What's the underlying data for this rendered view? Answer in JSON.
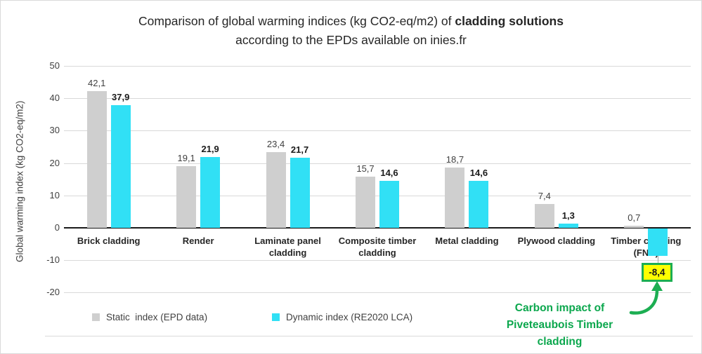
{
  "title_parts": {
    "line1_regular": "Comparison of global warming indices (kg CO2-eq/m2) of ",
    "line1_bold": "cladding solutions",
    "line2": "according to the EPDs available on inies.fr"
  },
  "chart_data": {
    "type": "bar",
    "title": "Comparison of global warming indices (kg CO2-eq/m2) of cladding solutions according to the EPDs available on inies.fr",
    "ylabel": "Global warming index (kg CO2-eq/m2)",
    "xlabel": "",
    "ylim": [
      -20,
      50
    ],
    "yticks": [
      50,
      40,
      30,
      20,
      10,
      0,
      -10,
      -20
    ],
    "grid": true,
    "legend_position": "bottom",
    "decimal_separator": ",",
    "categories": [
      "Brick cladding",
      "Render",
      "Laminate panel cladding",
      "Composite timber cladding",
      "Metal cladding",
      "Plywood cladding",
      "Timber cladding (FNB)"
    ],
    "series": [
      {
        "name": "Static  index (EPD data)",
        "color": "#cfcfcf",
        "values": [
          42.1,
          19.1,
          23.4,
          15.7,
          18.7,
          7.4,
          0.7
        ],
        "labels": [
          "42,1",
          "19,1",
          "23,4",
          "15,7",
          "18,7",
          "7,4",
          "0,7"
        ]
      },
      {
        "name": "Dynamic index (RE2020 LCA)",
        "color": "#31e0f5",
        "values": [
          37.9,
          21.9,
          21.7,
          14.6,
          14.6,
          1.3,
          -8.4
        ],
        "labels": [
          "37,9",
          "21,9",
          "21,7",
          "14,6",
          "14,6",
          "1,3",
          "-8,4"
        ]
      }
    ],
    "highlight_label": {
      "series_index": 1,
      "category_index": 6,
      "fill": "#ffff00",
      "border_color": "#1cae52"
    }
  },
  "annotation": {
    "lines": [
      "Carbon impact of",
      "Piveteaubois Timber",
      "cladding"
    ],
    "color": "#0ba74d",
    "arrow_color": "#1cae52"
  }
}
